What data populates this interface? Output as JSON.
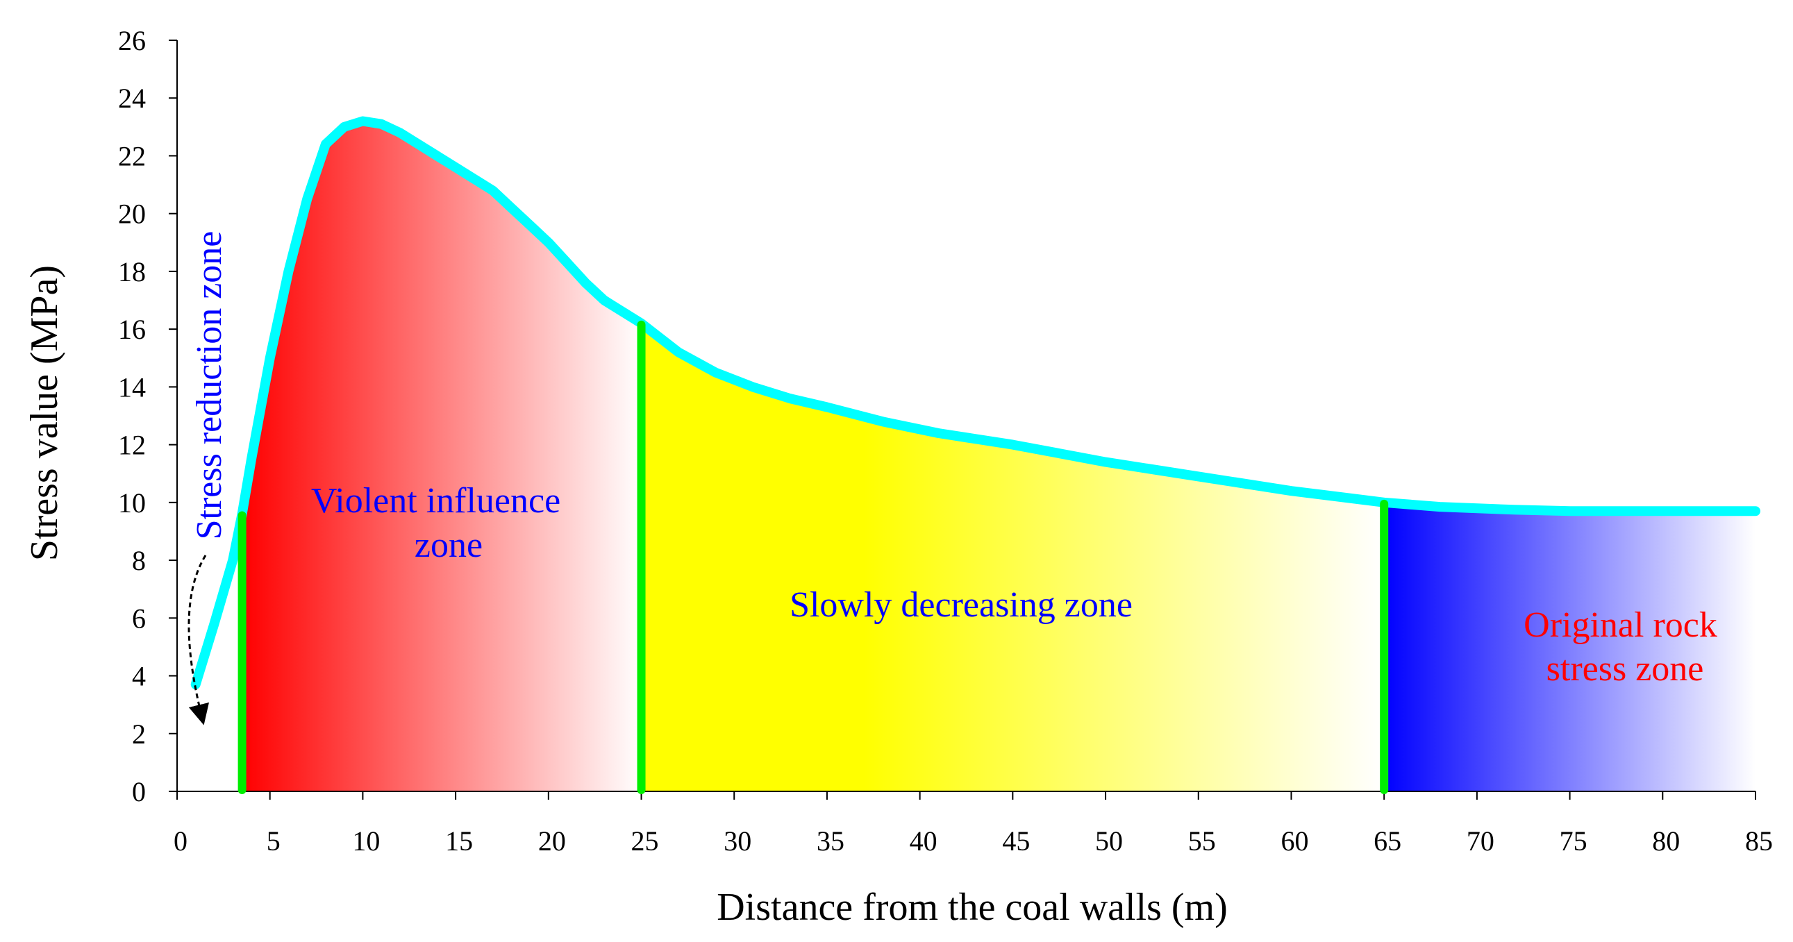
{
  "chart_data": {
    "type": "area",
    "title": "",
    "xlabel": "Distance from the coal walls (m)",
    "ylabel": "Stress value (MPa)",
    "xlim": [
      0,
      85
    ],
    "ylim": [
      0,
      26
    ],
    "xticks": [
      0,
      5,
      10,
      15,
      20,
      25,
      30,
      35,
      40,
      45,
      50,
      55,
      60,
      65,
      70,
      75,
      80,
      85
    ],
    "yticks": [
      0,
      2,
      4,
      6,
      8,
      10,
      12,
      14,
      16,
      18,
      20,
      22,
      24,
      26
    ],
    "grid": false,
    "series": [
      {
        "name": "Stress value",
        "color": "#00ffff",
        "x": [
          1,
          2,
          3,
          3.5,
          4,
          5,
          6,
          7,
          8,
          9,
          10,
          11,
          12,
          13,
          14,
          15,
          16,
          17,
          18,
          19,
          20,
          21,
          22,
          23,
          24,
          25,
          27,
          29,
          31,
          33,
          35,
          38,
          41,
          45,
          50,
          55,
          60,
          65,
          68,
          72,
          75,
          80,
          85
        ],
        "y": [
          3.7,
          5.8,
          8.0,
          9.6,
          11.5,
          15.0,
          18.0,
          20.5,
          22.4,
          23.0,
          23.2,
          23.1,
          22.8,
          22.4,
          22.0,
          21.6,
          21.2,
          20.8,
          20.2,
          19.6,
          19.0,
          18.3,
          17.6,
          17.0,
          16.6,
          16.2,
          15.2,
          14.5,
          14.0,
          13.6,
          13.3,
          12.8,
          12.4,
          12.0,
          11.4,
          10.9,
          10.4,
          10.0,
          9.85,
          9.75,
          9.7,
          9.7,
          9.7
        ]
      }
    ],
    "zone_boundaries": [
      3.5,
      25,
      65
    ],
    "boundary_color": "#00ee00",
    "zones": [
      {
        "name": "Violent influence zone",
        "from": 3.5,
        "to": 25,
        "color": "#ff0000",
        "fade": "#ffffff"
      },
      {
        "name": "Slowly decreasing zone",
        "from": 25,
        "to": 65,
        "color": "#ffff00",
        "fade": "#ffffff"
      },
      {
        "name": "Original rock stress zone",
        "from": 65,
        "to": 85,
        "color": "#0000ff",
        "fade": "#ffffff"
      }
    ],
    "annotations": [
      {
        "lines": [
          "Violent influence",
          "zone"
        ],
        "color": "#0000ff"
      },
      {
        "lines": [
          "Slowly decreasing zone"
        ],
        "color": "#0000ff"
      },
      {
        "lines": [
          "Original rock",
          "stress zone"
        ],
        "color": "#ff0000"
      },
      {
        "lines": [
          "Stress reduction zone"
        ],
        "color": "#0000ff",
        "rotated": true
      }
    ]
  }
}
